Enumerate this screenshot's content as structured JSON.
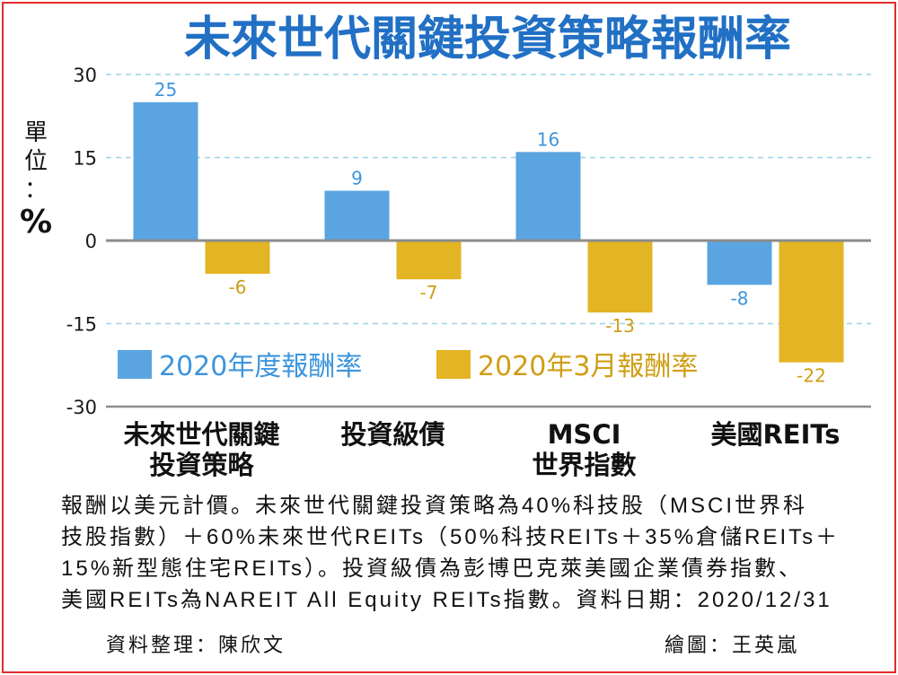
{
  "chart_data": {
    "type": "bar",
    "title": "未來世代關鍵投資策略報酬率",
    "ylabel": "單位：%",
    "categories": [
      "未來世代關鍵\n投資策略",
      "投資級債",
      "MSCI\n世界指數",
      "美國REITs"
    ],
    "series": [
      {
        "name": "2020年度報酬率",
        "values": [
          25,
          9,
          16,
          -8
        ],
        "color": "#5aa5e1",
        "label_color": "#3d95dc"
      },
      {
        "name": "2020年3月報酬率",
        "values": [
          -6,
          -7,
          -13,
          -22
        ],
        "color": "#e3b423",
        "label_color": "#cf9e14"
      }
    ],
    "ylim": [
      -30,
      30
    ],
    "yticks": [
      30,
      15,
      0,
      -15,
      -30
    ],
    "grid": true,
    "gridline_color": "#9ad3e8",
    "axis_color": "#8c8c8c",
    "legend_position": "bottom-left"
  },
  "notes": {
    "lines": [
      "報酬以美元計價。未來世代關鍵投資策略為40%科技股（MSCI世界科",
      "技股指數）＋60%未來世代REITs（50%科技REITs＋35%倉儲REITs＋",
      "15%新型態住宅REITs）。投資級債為彭博巴克萊美國企業債券指數、",
      "美國REITs為NAREIT All Equity REITs指數。資料日期：2020/12/31"
    ]
  },
  "credits": {
    "compiled_by": "資料整理：陳欣文",
    "graphic_by": "繪圖：王英嵐"
  },
  "colors": {
    "title": "#2170c4",
    "frame": "#e12b2b",
    "text": "#111111"
  }
}
